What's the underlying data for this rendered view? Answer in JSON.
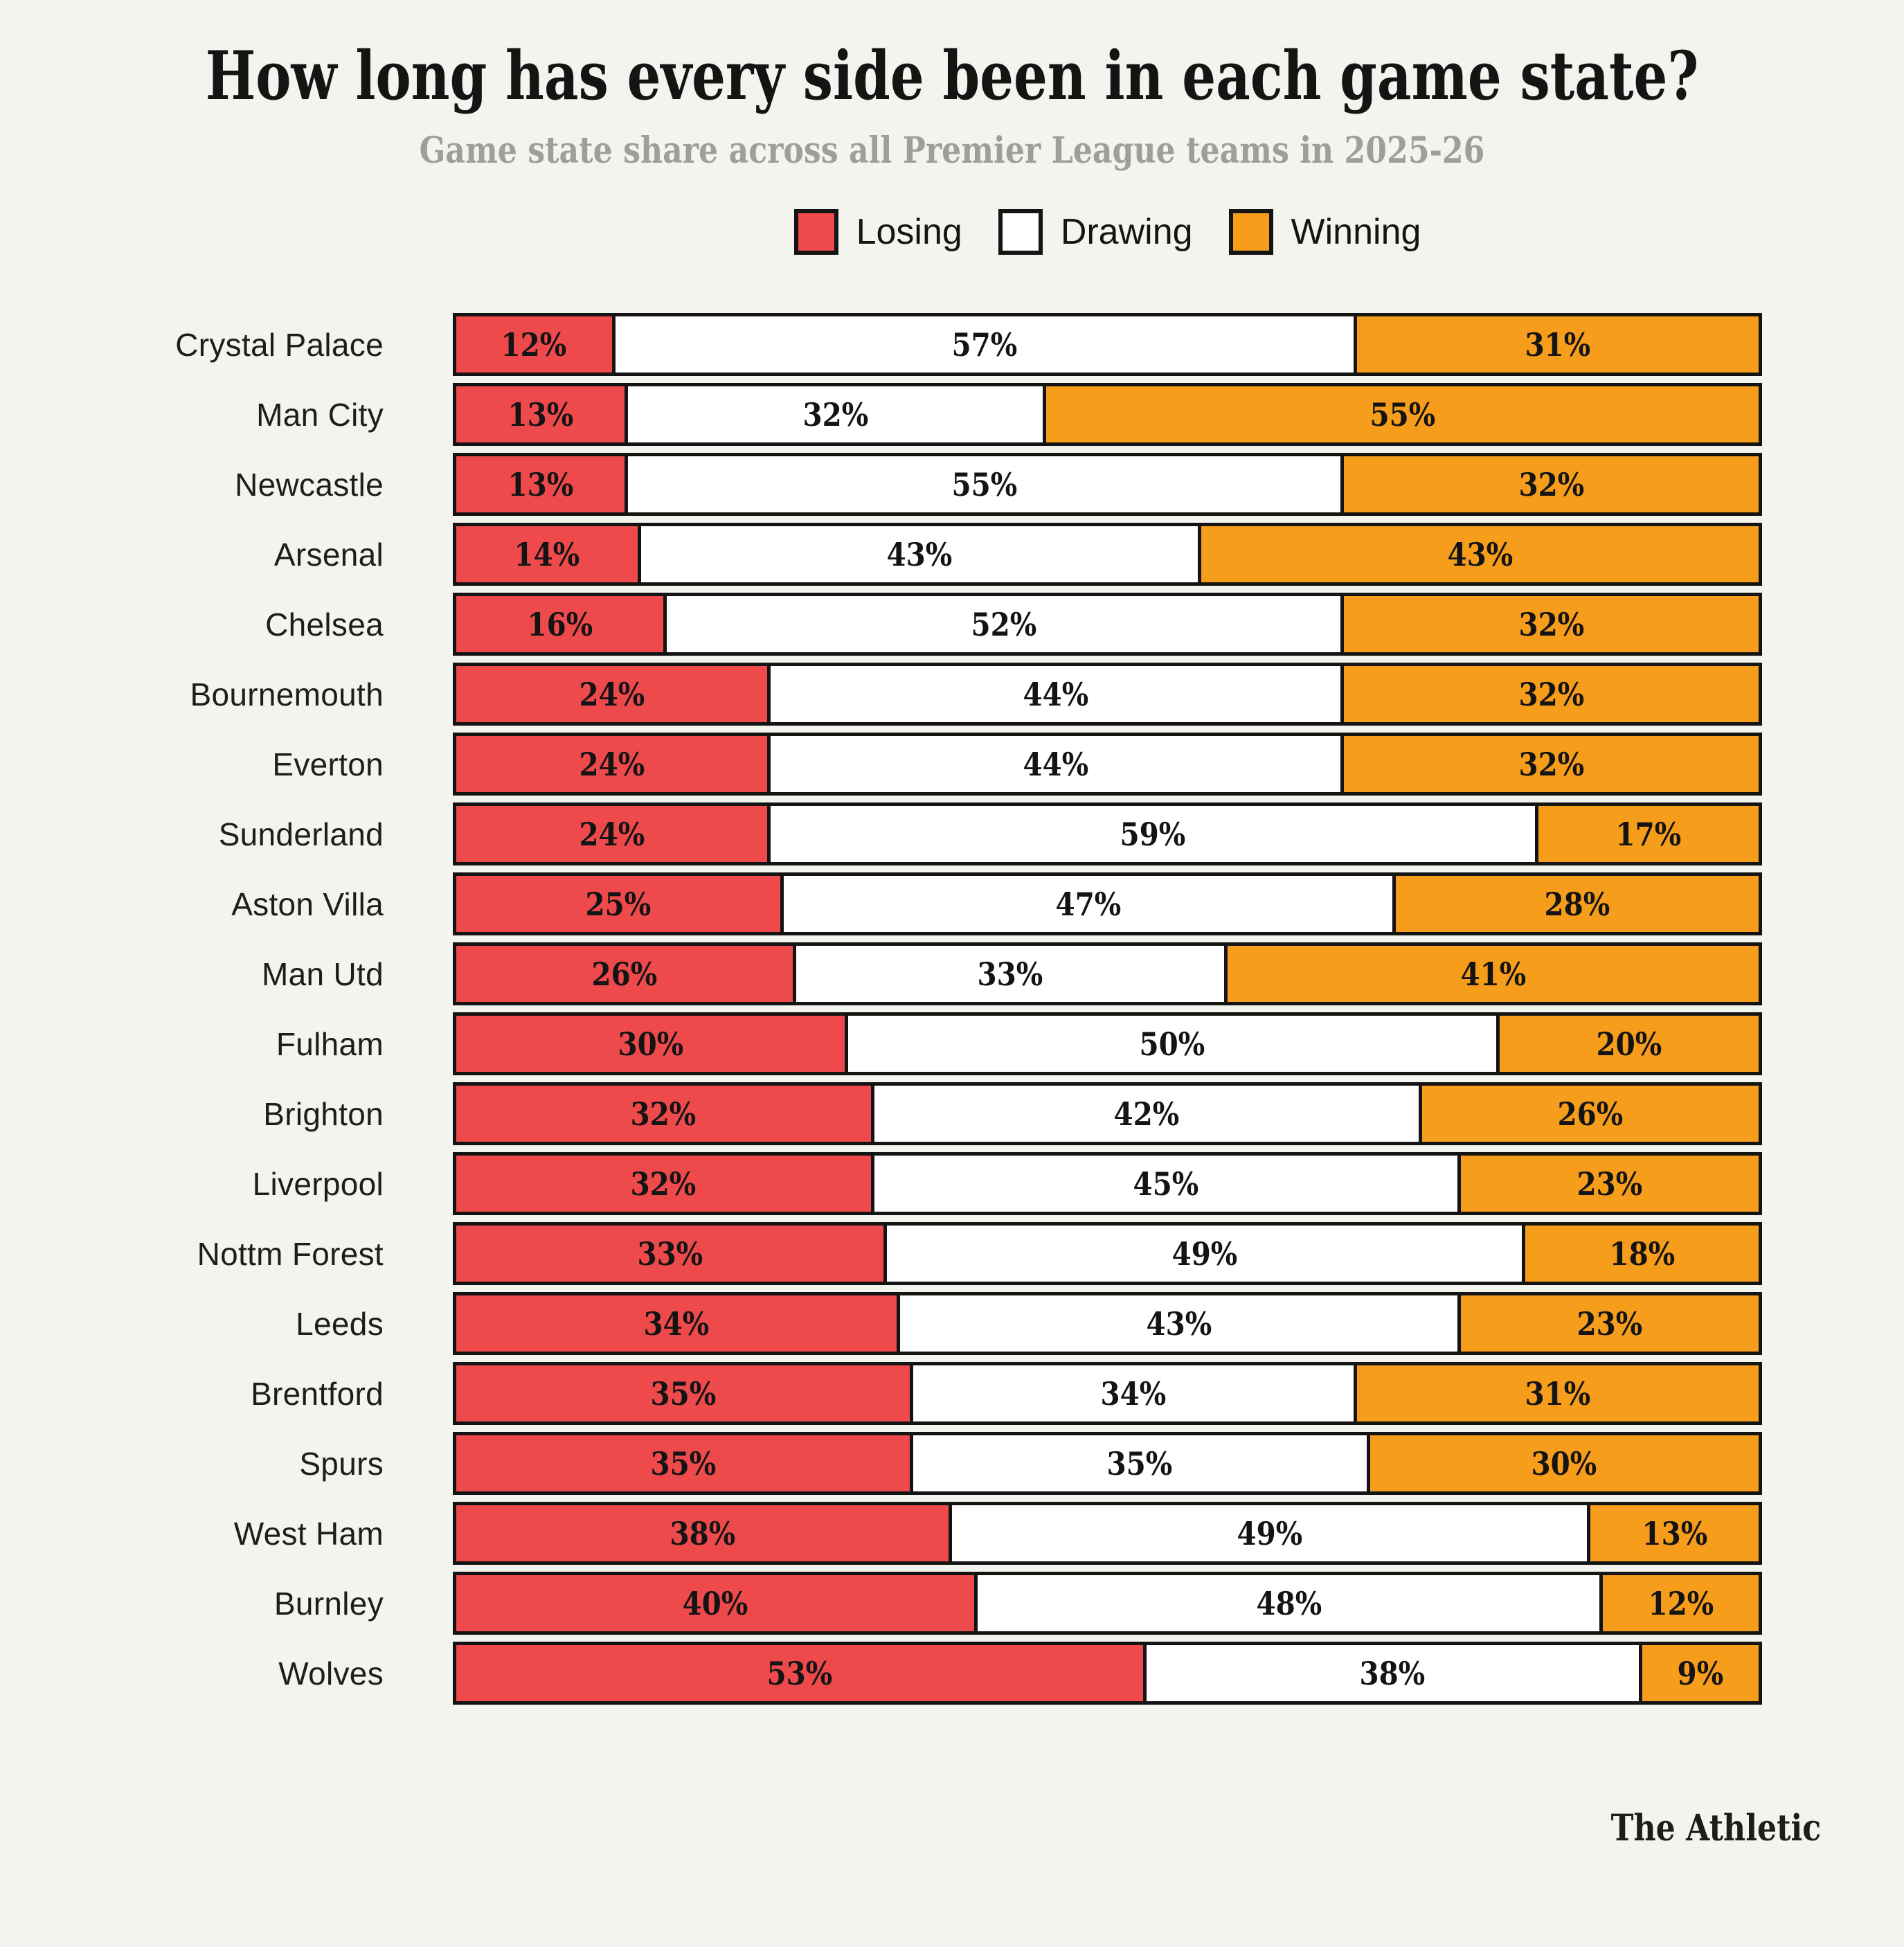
{
  "title": "How long has every side been in each game state?",
  "subtitle": "Game state share across all Premier League teams in 2025-26",
  "legend": {
    "items": [
      {
        "key": "losing",
        "label": "Losing"
      },
      {
        "key": "drawing",
        "label": "Drawing"
      },
      {
        "key": "winning",
        "label": "Winning"
      }
    ]
  },
  "colors": {
    "losing": "#ee4a4c",
    "drawing": "#ffffff",
    "winning": "#f79d1c",
    "ink": "#141414",
    "background": "#f4f4ee",
    "subtitle_gray": "#9e9e9a"
  },
  "footer": {
    "brand": "The Athletic"
  },
  "chart_data": {
    "type": "bar",
    "orientation": "horizontal-stacked",
    "stack_unit": "percent",
    "xlim": [
      0,
      100
    ],
    "grid": false,
    "legend_position": "top",
    "value_label_format": "{value}%",
    "title": "How long has every side been in each game state?",
    "subtitle": "Game state share across all Premier League teams in 2025-26",
    "categories": [
      "Crystal Palace",
      "Man City",
      "Newcastle",
      "Arsenal",
      "Chelsea",
      "Bournemouth",
      "Everton",
      "Sunderland",
      "Aston Villa",
      "Man Utd",
      "Fulham",
      "Brighton",
      "Liverpool",
      "Nottm Forest",
      "Leeds",
      "Brentford",
      "Spurs",
      "West Ham",
      "Burnley",
      "Wolves"
    ],
    "series": [
      {
        "name": "Losing",
        "values": [
          12,
          13,
          13,
          14,
          16,
          24,
          24,
          24,
          25,
          26,
          30,
          32,
          32,
          33,
          34,
          35,
          35,
          38,
          40,
          53
        ]
      },
      {
        "name": "Drawing",
        "values": [
          57,
          32,
          55,
          43,
          52,
          44,
          44,
          59,
          47,
          33,
          50,
          42,
          45,
          49,
          43,
          34,
          35,
          49,
          48,
          38
        ]
      },
      {
        "name": "Winning",
        "values": [
          31,
          55,
          32,
          43,
          32,
          32,
          32,
          17,
          28,
          41,
          20,
          26,
          23,
          18,
          23,
          31,
          30,
          13,
          12,
          9
        ]
      }
    ]
  }
}
